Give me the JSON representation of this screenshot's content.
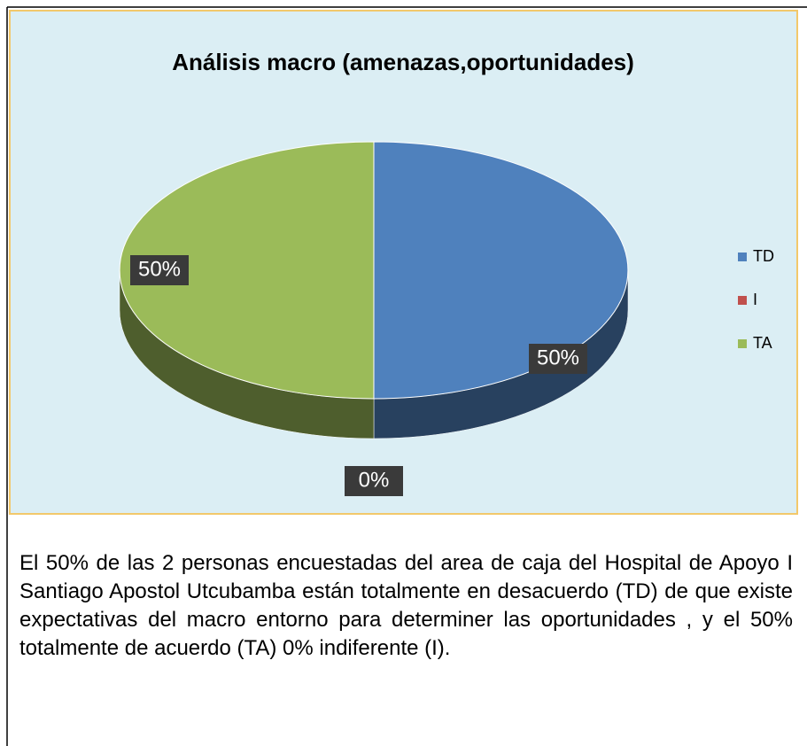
{
  "chart_data": {
    "type": "pie",
    "title": "Análisis macro (amenazas,oportunidades)",
    "categories": [
      "TD",
      "I",
      "TA"
    ],
    "values": [
      50,
      0,
      50
    ],
    "value_labels": [
      "50%",
      "0%",
      "50%"
    ],
    "colors": [
      "#4f81bd",
      "#c0504d",
      "#9bbb59"
    ],
    "legend": "right"
  },
  "paragraph": "El 50% de las 2 personas encuestadas del area de caja del Hospital de Apoyo I Santiago Apostol Utcubamba están totalmente en desacuerdo (TD) de que existe expectativas del macro entorno para determiner las oportunidades , y el 50% totalmente de acuerdo (TA) 0% indiferente (I)."
}
